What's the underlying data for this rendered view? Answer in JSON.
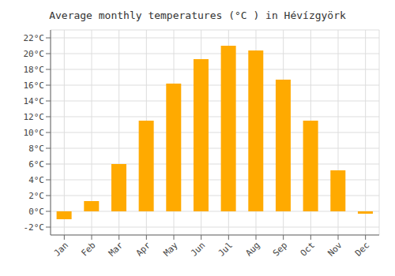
{
  "chart_data": {
    "type": "bar",
    "title": "Average monthly temperatures (°C ) in Hévízgyörk",
    "categories": [
      "Jan",
      "Feb",
      "Mar",
      "Apr",
      "May",
      "Jun",
      "Jul",
      "Aug",
      "Sep",
      "Oct",
      "Nov",
      "Dec"
    ],
    "values": [
      -1.0,
      1.3,
      6.0,
      11.5,
      16.2,
      19.3,
      21.0,
      20.4,
      16.7,
      11.5,
      5.2,
      -0.3
    ],
    "color": "#FFAA00",
    "ylim": [
      -3,
      23
    ],
    "yticks": [
      {
        "value": -2,
        "label": "-2°C"
      },
      {
        "value": 0,
        "label": "0°C"
      },
      {
        "value": 2,
        "label": "2°C"
      },
      {
        "value": 4,
        "label": "4°C"
      },
      {
        "value": 6,
        "label": "6°C"
      },
      {
        "value": 8,
        "label": "8°C"
      },
      {
        "value": 10,
        "label": "10°C"
      },
      {
        "value": 12,
        "label": "12°C"
      },
      {
        "value": 14,
        "label": "14°C"
      },
      {
        "value": 16,
        "label": "16°C"
      },
      {
        "value": 18,
        "label": "18°C"
      },
      {
        "value": 20,
        "label": "20°C"
      },
      {
        "value": 22,
        "label": "22°C"
      }
    ],
    "grid": true
  }
}
